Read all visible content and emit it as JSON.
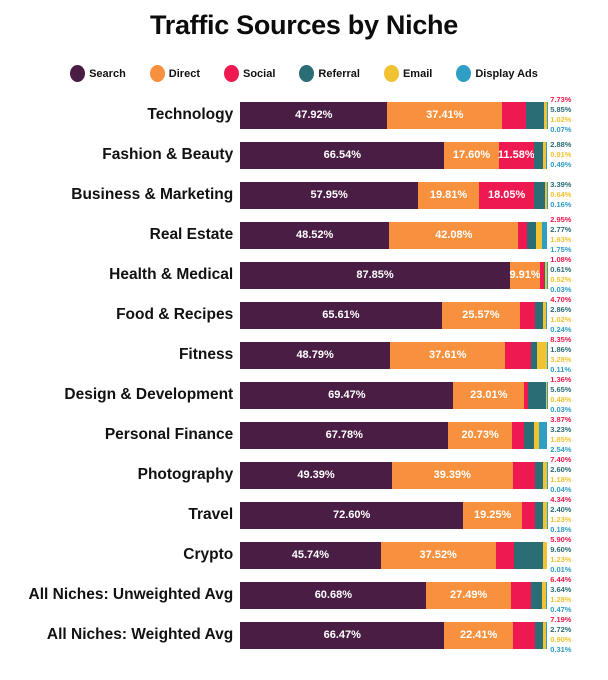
{
  "title": "Traffic Sources by Niche",
  "legend": [
    {
      "label": "Search",
      "color": "#4a1d45"
    },
    {
      "label": "Direct",
      "color": "#f7913e"
    },
    {
      "label": "Social",
      "color": "#ee1950"
    },
    {
      "label": "Referral",
      "color": "#2b6d75"
    },
    {
      "label": "Email",
      "color": "#f1c232"
    },
    {
      "label": "Display Ads",
      "color": "#2e9ec5"
    }
  ],
  "chart_data": {
    "type": "bar",
    "orientation": "horizontal",
    "stacked": true,
    "unit": "%",
    "title": "Traffic Sources by Niche",
    "xlabel": "",
    "ylabel": "",
    "xlim": [
      0,
      100
    ],
    "grid": false,
    "legend_position": "top",
    "value_label_format": "0.00%",
    "categories": [
      "Technology",
      "Fashion & Beauty",
      "Business & Marketing",
      "Real Estate",
      "Health & Medical",
      "Food & Recipes",
      "Fitness",
      "Design & Development",
      "Personal Finance",
      "Photography",
      "Travel",
      "Crypto",
      "All Niches: Unweighted Avg",
      "All Niches: Weighted Avg"
    ],
    "series": [
      {
        "name": "Search",
        "color": "#4a1d45",
        "values": [
          47.92,
          66.54,
          57.95,
          48.52,
          87.85,
          65.61,
          48.79,
          69.47,
          67.78,
          49.39,
          72.6,
          45.74,
          60.68,
          66.47
        ]
      },
      {
        "name": "Direct",
        "color": "#f7913e",
        "values": [
          37.41,
          17.6,
          19.81,
          42.08,
          9.91,
          25.57,
          37.61,
          23.01,
          20.73,
          39.39,
          19.25,
          37.52,
          27.49,
          22.41
        ]
      },
      {
        "name": "Social",
        "color": "#ee1950",
        "values": [
          7.73,
          11.58,
          18.05,
          2.95,
          1.08,
          4.7,
          8.35,
          1.36,
          3.87,
          7.4,
          4.34,
          5.9,
          6.44,
          7.19
        ]
      },
      {
        "name": "Referral",
        "color": "#2b6d75",
        "values": [
          5.85,
          2.88,
          3.39,
          2.77,
          0.61,
          2.86,
          1.86,
          5.65,
          3.23,
          2.6,
          2.4,
          9.6,
          3.64,
          2.72
        ]
      },
      {
        "name": "Email",
        "color": "#f1c232",
        "values": [
          1.02,
          0.91,
          0.64,
          1.93,
          0.52,
          1.02,
          3.28,
          0.48,
          1.85,
          1.18,
          1.23,
          1.23,
          1.28,
          0.9
        ]
      },
      {
        "name": "Display Ads",
        "color": "#2e9ec5",
        "values": [
          0.07,
          0.49,
          0.16,
          1.75,
          0.03,
          0.24,
          0.11,
          0.03,
          2.54,
          0.04,
          0.18,
          0.01,
          0.47,
          0.31
        ]
      }
    ]
  }
}
